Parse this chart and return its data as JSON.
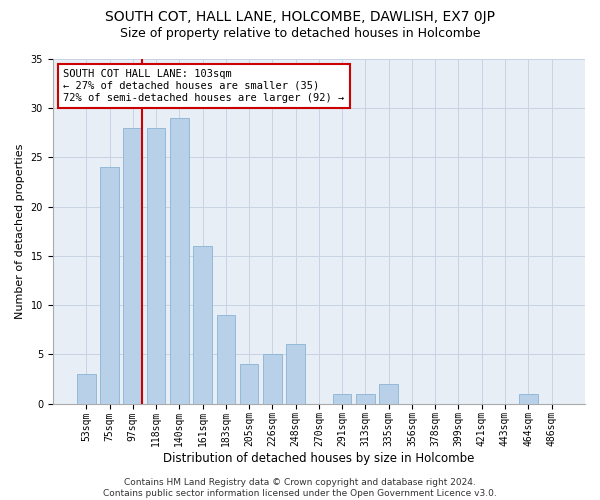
{
  "title": "SOUTH COT, HALL LANE, HOLCOMBE, DAWLISH, EX7 0JP",
  "subtitle": "Size of property relative to detached houses in Holcombe",
  "xlabel": "Distribution of detached houses by size in Holcombe",
  "ylabel": "Number of detached properties",
  "categories": [
    "53sqm",
    "75sqm",
    "97sqm",
    "118sqm",
    "140sqm",
    "161sqm",
    "183sqm",
    "205sqm",
    "226sqm",
    "248sqm",
    "270sqm",
    "291sqm",
    "313sqm",
    "335sqm",
    "356sqm",
    "378sqm",
    "399sqm",
    "421sqm",
    "443sqm",
    "464sqm",
    "486sqm"
  ],
  "values": [
    3,
    24,
    28,
    28,
    29,
    16,
    9,
    4,
    5,
    6,
    0,
    1,
    1,
    2,
    0,
    0,
    0,
    0,
    0,
    1,
    0
  ],
  "bar_color": "#b8d0e8",
  "bar_edge_color": "#8ab4d4",
  "vline_x_index": 2,
  "vline_color": "#cc0000",
  "annotation_text": "SOUTH COT HALL LANE: 103sqm\n← 27% of detached houses are smaller (35)\n72% of semi-detached houses are larger (92) →",
  "annotation_box_color": "#ffffff",
  "annotation_box_edge_color": "#cc0000",
  "ylim": [
    0,
    35
  ],
  "yticks": [
    0,
    5,
    10,
    15,
    20,
    25,
    30,
    35
  ],
  "grid_color": "#c8d4e4",
  "bg_color": "#e8eef6",
  "footer": "Contains HM Land Registry data © Crown copyright and database right 2024.\nContains public sector information licensed under the Open Government Licence v3.0.",
  "title_fontsize": 10,
  "subtitle_fontsize": 9,
  "xlabel_fontsize": 8.5,
  "ylabel_fontsize": 8,
  "tick_fontsize": 7,
  "annot_fontsize": 7.5,
  "footer_fontsize": 6.5
}
